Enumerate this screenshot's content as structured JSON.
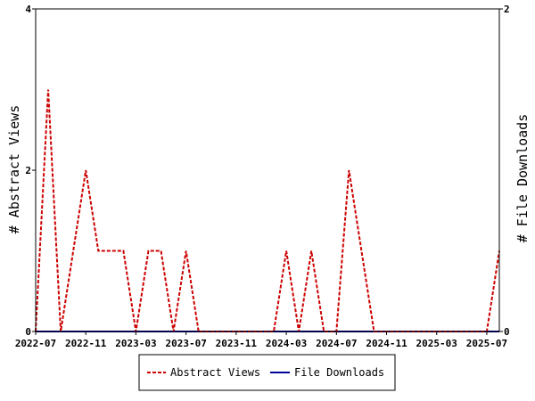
{
  "chart_data": {
    "type": "line",
    "x_ticks": [
      "2022-07",
      "2022-11",
      "2023-03",
      "2023-07",
      "2023-11",
      "2024-03",
      "2024-07",
      "2024-11",
      "2025-03",
      "2025-07"
    ],
    "x_tick_months": [
      0,
      4,
      8,
      12,
      16,
      20,
      24,
      28,
      32,
      36
    ],
    "x_range_months": [
      0,
      37
    ],
    "ylabel_left": "# Abstract Views",
    "ylabel_right": "# File Downloads",
    "ylim_left": [
      0,
      4
    ],
    "ylim_right": [
      0,
      2
    ],
    "yticks_left": [
      "0",
      "2",
      "4"
    ],
    "yticks_right": [
      "0",
      "2"
    ],
    "legend_position": "bottom",
    "series": [
      {
        "name": "Abstract Views",
        "color": "#cc0000",
        "axis": "left",
        "style": "dashed",
        "points": [
          [
            0,
            0
          ],
          [
            1,
            3
          ],
          [
            2,
            0
          ],
          [
            3,
            1
          ],
          [
            4,
            2
          ],
          [
            5,
            1
          ],
          [
            6,
            1
          ],
          [
            7,
            1
          ],
          [
            8,
            0
          ],
          [
            9,
            1
          ],
          [
            10,
            1
          ],
          [
            11,
            0
          ],
          [
            12,
            1
          ],
          [
            13,
            0
          ],
          [
            14,
            0
          ],
          [
            15,
            0
          ],
          [
            16,
            0
          ],
          [
            17,
            0
          ],
          [
            18,
            0
          ],
          [
            19,
            0
          ],
          [
            20,
            1
          ],
          [
            21,
            0
          ],
          [
            22,
            1
          ],
          [
            23,
            0
          ],
          [
            24,
            0
          ],
          [
            25,
            2
          ],
          [
            26,
            1
          ],
          [
            27,
            0
          ],
          [
            28,
            0
          ],
          [
            29,
            0
          ],
          [
            30,
            0
          ],
          [
            31,
            0
          ],
          [
            32,
            0
          ],
          [
            33,
            0
          ],
          [
            34,
            0
          ],
          [
            35,
            0
          ],
          [
            36,
            0
          ],
          [
            37,
            1
          ]
        ]
      },
      {
        "name": "File Downloads",
        "color": "#000099",
        "axis": "right",
        "style": "solid",
        "points": [
          [
            0,
            0
          ],
          [
            37,
            0
          ]
        ]
      }
    ]
  }
}
